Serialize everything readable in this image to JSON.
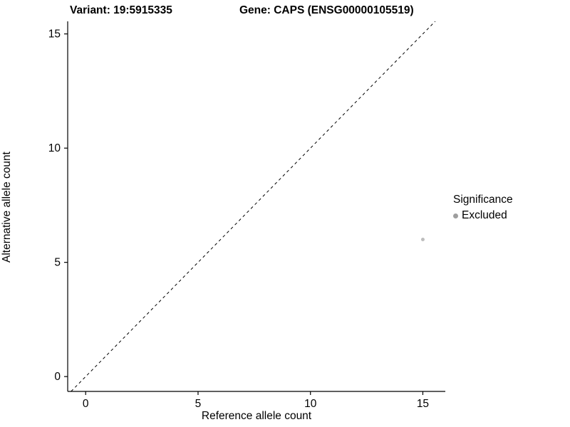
{
  "header": {
    "title_left": "Variant: 19:5915335",
    "title_right": "Gene: CAPS (ENSG00000105519)"
  },
  "chart_data": {
    "type": "scatter",
    "title": "Variant: 19:5915335    Gene: CAPS (ENSG00000105519)",
    "xlabel": "Reference allele count",
    "ylabel": "Alternative allele count",
    "xlim": [
      -0.8,
      16.0
    ],
    "ylim": [
      -0.65,
      15.55
    ],
    "xticks": [
      0,
      5,
      10,
      15
    ],
    "yticks": [
      0,
      5,
      10,
      15
    ],
    "grid": false,
    "identity_line": {
      "style": "dashed",
      "color": "#000000",
      "from": -0.65,
      "to": 15.55
    },
    "points": [
      {
        "x": 15,
        "y": 6,
        "significance": "Excluded"
      }
    ],
    "point_color": "#bdbdbd",
    "point_radius": 2.5,
    "axis_color": "#000000",
    "legend": {
      "title": "Significance",
      "position": "right",
      "entries": [
        {
          "label": "Excluded",
          "color": "#9e9e9e"
        }
      ]
    }
  }
}
